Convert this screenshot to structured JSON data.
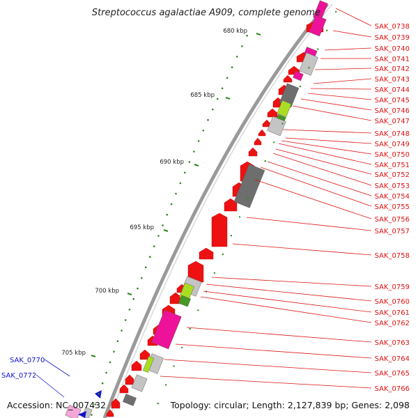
{
  "title": "Streptococcus agalactiae A909, complete genome",
  "accession": "Accession: NC_007432",
  "topology": "Topology: circular; Length: 2,127,839 bp; Genes: 2,098",
  "kbp_labels": [
    "680 kbp",
    "685 kbp",
    "690 kbp",
    "695 kbp",
    "700 kbp",
    "705 kbp"
  ],
  "right_labels": [
    "SAK_0738",
    "SAK_0739",
    "SAK_0740",
    "SAK_0741",
    "SAK_0742",
    "SAK_0743",
    "SAK_0744",
    "SAK_0745",
    "SAK_0746",
    "SAK_0747",
    "SAK_0748",
    "SAK_0749",
    "SAK_0750",
    "SAK_0751",
    "SAK_0752",
    "SAK_0753",
    "SAK_0754",
    "SAK_0755",
    "SAK_0756",
    "SAK_0757",
    "SAK_0758",
    "SAK_0759",
    "SAK_0760",
    "SAK_0761",
    "SAK_0762",
    "SAK_0763",
    "SAK_0764",
    "SAK_0765",
    "SAK_0766"
  ],
  "left_labels": [
    "SAK_0770",
    "SAK_0772"
  ],
  "colors": {
    "gene_red": "#ee1111",
    "label_red": "#dd1111",
    "label_blue": "#1111cc",
    "backbone": "#9a9a9a",
    "gc_dot": "#2a8a1a",
    "magenta": "#ee1199",
    "pink": "#f4a6d6",
    "grey_dark": "#6e6e6e",
    "grey_light": "#c4c4c4",
    "lime": "#aadd22",
    "green": "#449922"
  }
}
